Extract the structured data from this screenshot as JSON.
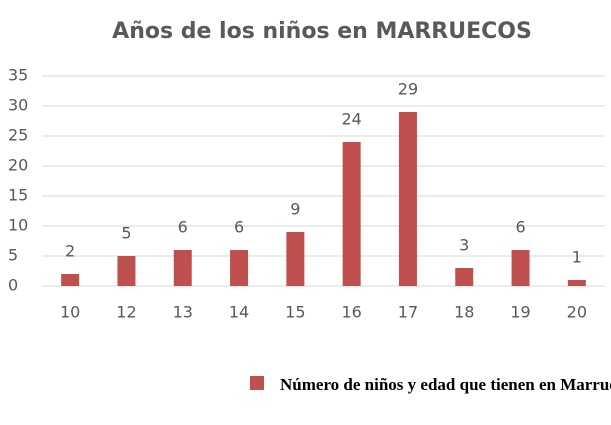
{
  "chart_data": {
    "type": "bar",
    "title": "Años de los niños en  MARRUECOS",
    "categories": [
      "10",
      "12",
      "13",
      "14",
      "15",
      "16",
      "17",
      "18",
      "19",
      "20"
    ],
    "series": [
      {
        "name": "Número de niños y edad que tienen en Marruecos",
        "color": "#c0504d",
        "values": [
          2,
          5,
          6,
          6,
          9,
          24,
          29,
          3,
          6,
          1
        ]
      }
    ],
    "ylim": [
      0,
      35
    ],
    "yticks": [
      0,
      5,
      10,
      15,
      20,
      25,
      30,
      35
    ],
    "grid": true,
    "legend": "bottom"
  }
}
